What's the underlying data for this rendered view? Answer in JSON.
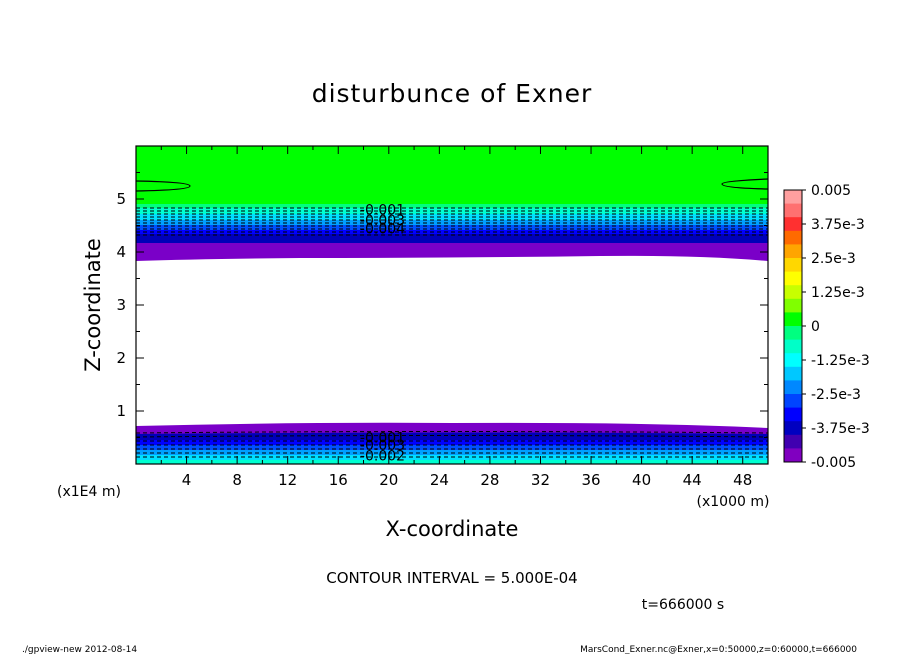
{
  "chart_data": {
    "type": "contour",
    "title": "disturbunce of Exner",
    "xlabel": "X-coordinate",
    "ylabel": "Z-coordinate",
    "x_unit": "(x1000 m)",
    "y_unit": "(x1E4 m)",
    "xlim": [
      0,
      50
    ],
    "ylim": [
      0,
      6
    ],
    "xticks": [
      {
        "value": 4,
        "label": "4"
      },
      {
        "value": 8,
        "label": "8"
      },
      {
        "value": 12,
        "label": "12"
      },
      {
        "value": 16,
        "label": "16"
      },
      {
        "value": 20,
        "label": "20"
      },
      {
        "value": 24,
        "label": "24"
      },
      {
        "value": 28,
        "label": "28"
      },
      {
        "value": 32,
        "label": "32"
      },
      {
        "value": 36,
        "label": "36"
      },
      {
        "value": 40,
        "label": "40"
      },
      {
        "value": 44,
        "label": "44"
      },
      {
        "value": 48,
        "label": "48"
      }
    ],
    "yticks": [
      {
        "value": 1,
        "label": "1"
      },
      {
        "value": 2,
        "label": "2"
      },
      {
        "value": 3,
        "label": "3"
      },
      {
        "value": 4,
        "label": "4"
      },
      {
        "value": 5,
        "label": "5"
      }
    ],
    "colorbar": {
      "min": -0.005,
      "max": 0.005,
      "labels": [
        "0.005",
        "3.75e-3",
        "2.5e-3",
        "1.25e-3",
        "0",
        "-1.25e-3",
        "-2.5e-3",
        "-3.75e-3",
        "-0.005"
      ],
      "colors_top_to_bottom": [
        "#ff9f9f",
        "#ff7070",
        "#ff3030",
        "#ff6a00",
        "#ffa500",
        "#ffd700",
        "#ffff00",
        "#c8ff00",
        "#80ff00",
        "#00ff00",
        "#00ff80",
        "#00ffc8",
        "#00ffff",
        "#00c8ff",
        "#0088ff",
        "#0044ff",
        "#0000ff",
        "#0000c0",
        "#4000b0",
        "#8000c0"
      ]
    },
    "contour_labels": [
      {
        "text": "-0.001",
        "x": 19.5,
        "z": 4.8
      },
      {
        "text": "-0.003",
        "x": 19.5,
        "z": 4.6
      },
      {
        "text": "-0.004",
        "x": 19.5,
        "z": 4.44
      },
      {
        "text": "-0.001",
        "x": 19.5,
        "z": 0.5
      },
      {
        "text": "-0.003",
        "x": 19.5,
        "z": 0.36
      },
      {
        "text": "-0.002",
        "x": 19.5,
        "z": 0.16
      }
    ],
    "contour_interval": "CONTOUR INTERVAL = 5.000E-04",
    "time_label": "t=666000 s"
  },
  "footer": {
    "left": "./gpview-new   2012-08-14",
    "right": "MarsCond_Exner.nc@Exner,x=0:50000,z=0:60000,t=666000"
  }
}
